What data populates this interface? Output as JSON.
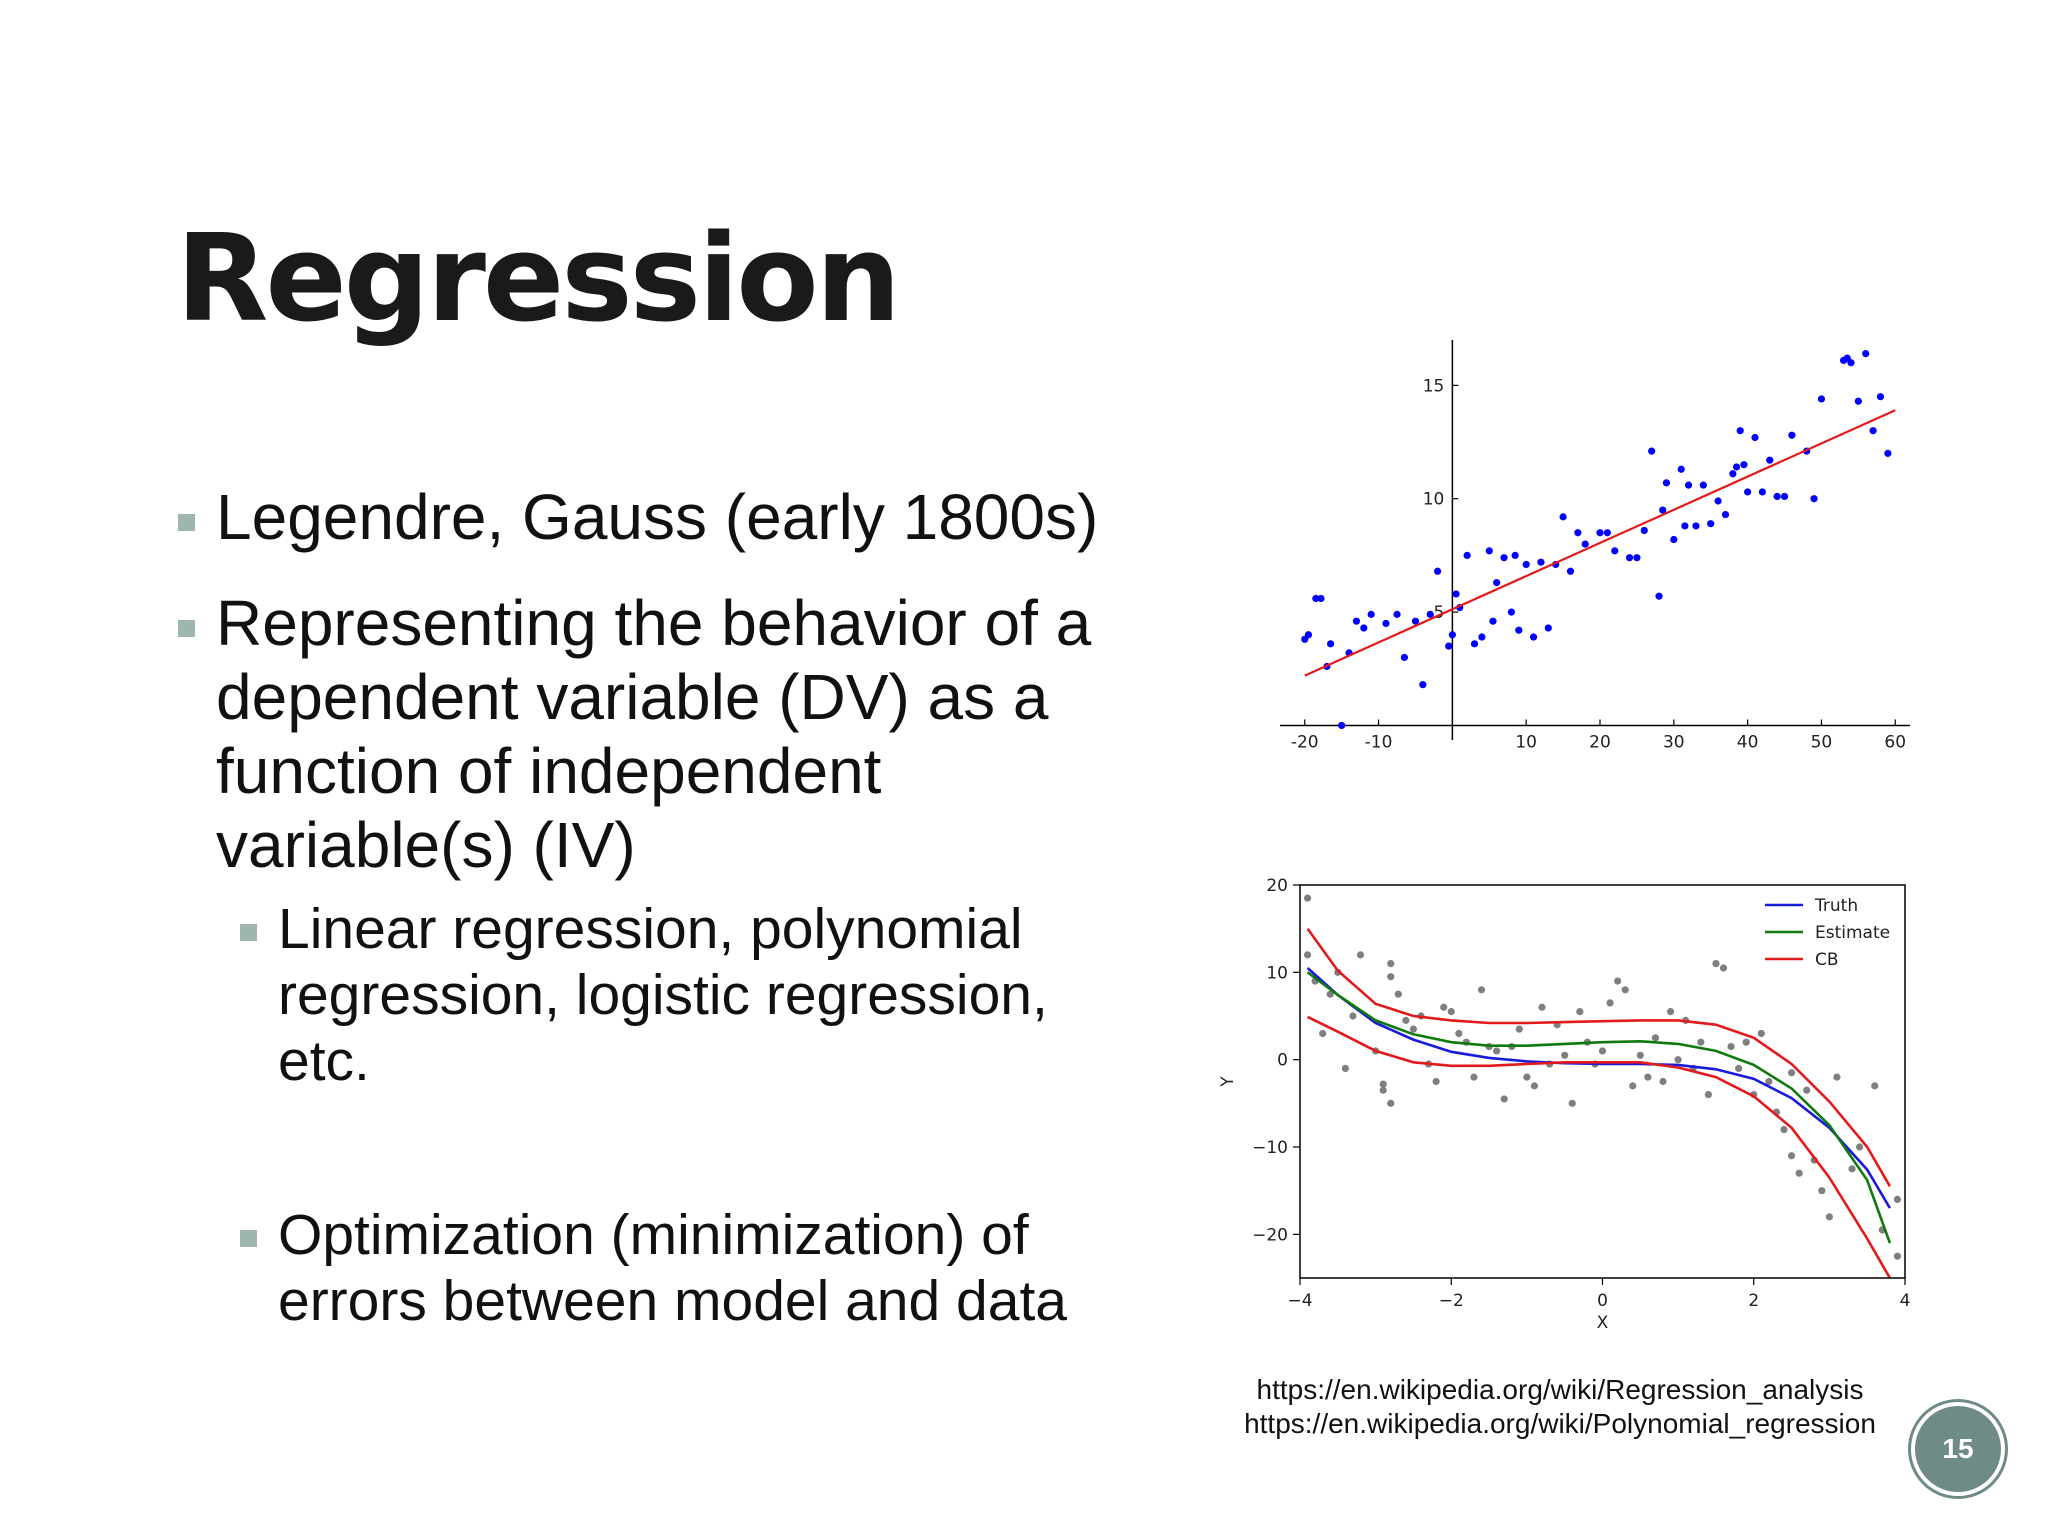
{
  "slide": {
    "title": "Regression",
    "bullets": [
      "Legendre, Gauss (early 1800s)",
      "Representing the behavior of a dependent variable (DV) as a function of independent variable(s) (IV)"
    ],
    "sub_bullets": [
      "Linear regression, polynomial regression, logistic regression, etc.",
      "Optimization (minimization) of errors between model and data"
    ],
    "refs": [
      "https://en.wikipedia.org/wiki/Regression_analysis",
      "https://en.wikipedia.org/wiki/Polynomial_regression"
    ],
    "page_number": "15",
    "colors": {
      "bullet": "#9fb6b0",
      "badge": "#6e8b87"
    }
  },
  "chart_data": [
    {
      "type": "scatter",
      "title": "",
      "xlabel": "",
      "ylabel": "",
      "xlim": [
        -22,
        62
      ],
      "ylim": [
        -0.2,
        17
      ],
      "xticks": [
        -20,
        -10,
        10,
        20,
        30,
        40,
        50,
        60
      ],
      "yticks": [
        5,
        10,
        15
      ],
      "grid": false,
      "series": [
        {
          "kind": "points",
          "color": "#0000ff",
          "points": [
            [
              -20,
              3.8
            ],
            [
              -19.5,
              4.0
            ],
            [
              -18.5,
              5.6
            ],
            [
              -17.8,
              5.6
            ],
            [
              -17,
              2.6
            ],
            [
              -16.5,
              3.6
            ],
            [
              -15,
              0
            ],
            [
              -14,
              3.2
            ],
            [
              -13,
              4.6
            ],
            [
              -12,
              4.3
            ],
            [
              -11,
              4.9
            ],
            [
              -9,
              4.5
            ],
            [
              -7.5,
              4.9
            ],
            [
              -6.5,
              3.0
            ],
            [
              -5,
              4.6
            ],
            [
              -4,
              1.8
            ],
            [
              -3,
              4.9
            ],
            [
              -2,
              6.8
            ],
            [
              -0.5,
              3.5
            ],
            [
              0,
              4.0
            ],
            [
              0.5,
              5.8
            ],
            [
              1,
              5.2
            ],
            [
              2,
              7.5
            ],
            [
              3,
              3.6
            ],
            [
              4,
              3.9
            ],
            [
              5,
              7.7
            ],
            [
              5.5,
              4.6
            ],
            [
              6,
              6.3
            ],
            [
              7,
              7.4
            ],
            [
              8,
              5.0
            ],
            [
              8.5,
              7.5
            ],
            [
              9,
              4.2
            ],
            [
              10,
              7.1
            ],
            [
              11,
              3.9
            ],
            [
              12,
              7.2
            ],
            [
              13,
              4.3
            ],
            [
              14,
              7.1
            ],
            [
              15,
              9.2
            ],
            [
              16,
              6.8
            ],
            [
              17,
              8.5
            ],
            [
              18,
              8.0
            ],
            [
              20,
              8.5
            ],
            [
              21,
              8.5
            ],
            [
              22,
              7.7
            ],
            [
              24,
              7.4
            ],
            [
              25,
              7.4
            ],
            [
              26,
              8.6
            ],
            [
              27,
              12.1
            ],
            [
              28,
              5.7
            ],
            [
              28.5,
              9.5
            ],
            [
              29,
              10.7
            ],
            [
              30,
              8.2
            ],
            [
              31,
              11.3
            ],
            [
              31.5,
              8.8
            ],
            [
              32,
              10.6
            ],
            [
              33,
              8.8
            ],
            [
              34,
              10.6
            ],
            [
              35,
              8.9
            ],
            [
              36,
              9.9
            ],
            [
              37,
              9.3
            ],
            [
              38,
              11.1
            ],
            [
              38.5,
              11.4
            ],
            [
              39,
              13.0
            ],
            [
              39.5,
              11.5
            ],
            [
              40,
              10.3
            ],
            [
              41,
              12.7
            ],
            [
              42,
              10.3
            ],
            [
              43,
              11.7
            ],
            [
              44,
              10.1
            ],
            [
              45,
              10.1
            ],
            [
              46,
              12.8
            ],
            [
              48,
              12.1
            ],
            [
              49,
              10.0
            ],
            [
              50,
              14.4
            ],
            [
              53,
              16.1
            ],
            [
              53.5,
              16.2
            ],
            [
              54,
              16.0
            ],
            [
              55,
              14.3
            ],
            [
              56,
              16.4
            ],
            [
              57,
              13.0
            ],
            [
              58,
              14.5
            ],
            [
              59,
              12.0
            ]
          ]
        },
        {
          "kind": "line",
          "color": "#e31a1c",
          "points": [
            [
              -20,
              2.2
            ],
            [
              60,
              13.9
            ]
          ]
        }
      ]
    },
    {
      "type": "line",
      "title": "",
      "xlabel": "X",
      "ylabel": "Y",
      "xlim": [
        -4,
        4
      ],
      "ylim": [
        -25,
        20
      ],
      "xticks": [
        -4,
        -2,
        0,
        2,
        4
      ],
      "yticks": [
        20,
        10,
        0,
        -10,
        -20
      ],
      "yticklabels": [
        "20",
        "10",
        "0",
        "−10",
        "−20"
      ],
      "xticklabels": [
        "−4",
        "−2",
        "0",
        "2",
        "4"
      ],
      "legend_position": "top-right",
      "grid": false,
      "series": [
        {
          "name": "Truth",
          "color": "#1a1adc",
          "x": [
            -3.9,
            -3.5,
            -3,
            -2.5,
            -2,
            -1.5,
            -1,
            -0.5,
            0,
            0.5,
            1,
            1.5,
            2,
            2.5,
            3,
            3.5,
            3.8
          ],
          "y": [
            10.5,
            7.4,
            4.2,
            2.3,
            0.9,
            0.2,
            -0.2,
            -0.4,
            -0.5,
            -0.5,
            -0.6,
            -1.1,
            -2.2,
            -4.4,
            -7.8,
            -12.6,
            -17.0
          ]
        },
        {
          "name": "Estimate",
          "color": "#0e7a0e",
          "x": [
            -3.9,
            -3.5,
            -3,
            -2.5,
            -2,
            -1.5,
            -1,
            -0.5,
            0,
            0.5,
            1,
            1.5,
            2,
            2.5,
            3,
            3.5,
            3.8
          ],
          "y": [
            10.0,
            7.4,
            4.5,
            2.9,
            2.0,
            1.6,
            1.6,
            1.8,
            2.0,
            2.1,
            1.8,
            1.0,
            -0.6,
            -3.3,
            -7.5,
            -13.8,
            -21.0
          ]
        },
        {
          "name": "CB",
          "color": "#e31a1c",
          "x": [
            -3.9,
            -3.5,
            -3,
            -2.5,
            -2,
            -1.5,
            -1,
            -0.5,
            0,
            0.5,
            1,
            1.5,
            2,
            2.5,
            3,
            3.5,
            3.8
          ],
          "y": [
            15.0,
            10.2,
            6.4,
            5.0,
            4.5,
            4.2,
            4.2,
            4.3,
            4.4,
            4.5,
            4.5,
            4.0,
            2.5,
            -0.5,
            -4.8,
            -10.0,
            -14.5
          ]
        },
        {
          "name": "",
          "color": "#e31a1c",
          "x": [
            -3.9,
            -3.5,
            -3,
            -2.5,
            -2,
            -1.5,
            -1,
            -0.5,
            0,
            0.5,
            1,
            1.5,
            2,
            2.5,
            3,
            3.5,
            3.8
          ],
          "y": [
            4.9,
            3.2,
            1.0,
            -0.3,
            -0.7,
            -0.7,
            -0.5,
            -0.3,
            -0.3,
            -0.3,
            -0.9,
            -2.0,
            -4.2,
            -7.8,
            -13.5,
            -20.5,
            -25.0
          ]
        }
      ],
      "scatter": {
        "color": "#7f7f7f",
        "points": [
          [
            -3.9,
            18.5
          ],
          [
            -3.9,
            12.0
          ],
          [
            -3.8,
            9.0
          ],
          [
            -3.7,
            3.0
          ],
          [
            -3.6,
            7.5
          ],
          [
            -3.5,
            10.0
          ],
          [
            -3.4,
            -1.0
          ],
          [
            -3.3,
            5.0
          ],
          [
            -3.2,
            12.0
          ],
          [
            -3.0,
            1.0
          ],
          [
            -2.9,
            -3.5
          ],
          [
            -2.9,
            -2.8
          ],
          [
            -2.8,
            -5.0
          ],
          [
            -2.8,
            11.0
          ],
          [
            -2.8,
            9.5
          ],
          [
            -2.7,
            7.5
          ],
          [
            -2.6,
            4.5
          ],
          [
            -2.5,
            3.5
          ],
          [
            -2.4,
            5.0
          ],
          [
            -2.3,
            -0.5
          ],
          [
            -2.2,
            -2.5
          ],
          [
            -2.1,
            6.0
          ],
          [
            -2.0,
            5.5
          ],
          [
            -1.9,
            3.0
          ],
          [
            -1.8,
            2.0
          ],
          [
            -1.7,
            -2.0
          ],
          [
            -1.6,
            8.0
          ],
          [
            -1.5,
            1.5
          ],
          [
            -1.4,
            1.0
          ],
          [
            -1.3,
            -4.5
          ],
          [
            -1.2,
            1.5
          ],
          [
            -1.1,
            3.5
          ],
          [
            -1.0,
            -2.0
          ],
          [
            -0.9,
            -3.0
          ],
          [
            -0.8,
            6.0
          ],
          [
            -0.7,
            -0.5
          ],
          [
            -0.6,
            4.0
          ],
          [
            -0.5,
            0.5
          ],
          [
            -0.4,
            -5.0
          ],
          [
            -0.3,
            5.5
          ],
          [
            -0.2,
            2.0
          ],
          [
            -0.1,
            -0.5
          ],
          [
            0,
            1.0
          ],
          [
            0.1,
            6.5
          ],
          [
            0.2,
            9.0
          ],
          [
            0.3,
            8.0
          ],
          [
            0.4,
            -3.0
          ],
          [
            0.5,
            0.5
          ],
          [
            0.6,
            -2.0
          ],
          [
            0.7,
            2.5
          ],
          [
            0.8,
            -2.5
          ],
          [
            0.9,
            5.5
          ],
          [
            1.0,
            0.0
          ],
          [
            1.1,
            4.5
          ],
          [
            1.2,
            -1.0
          ],
          [
            1.3,
            2.0
          ],
          [
            1.4,
            -4.0
          ],
          [
            1.5,
            11.0
          ],
          [
            1.6,
            10.5
          ],
          [
            1.7,
            1.5
          ],
          [
            1.8,
            -1.0
          ],
          [
            1.9,
            2.0
          ],
          [
            2.0,
            -4.0
          ],
          [
            2.1,
            3.0
          ],
          [
            2.2,
            -2.5
          ],
          [
            2.3,
            -6.0
          ],
          [
            2.4,
            -8.0
          ],
          [
            2.5,
            -11.0
          ],
          [
            2.5,
            -1.5
          ],
          [
            2.6,
            -13.0
          ],
          [
            2.7,
            -3.5
          ],
          [
            2.8,
            -11.5
          ],
          [
            2.9,
            -15.0
          ],
          [
            3.0,
            -18.0
          ],
          [
            3.1,
            -2.0
          ],
          [
            3.3,
            -12.5
          ],
          [
            3.4,
            -10.0
          ],
          [
            3.6,
            -3.0
          ],
          [
            3.7,
            -19.5
          ],
          [
            3.9,
            -16.0
          ],
          [
            3.9,
            -22.5
          ]
        ]
      }
    }
  ]
}
